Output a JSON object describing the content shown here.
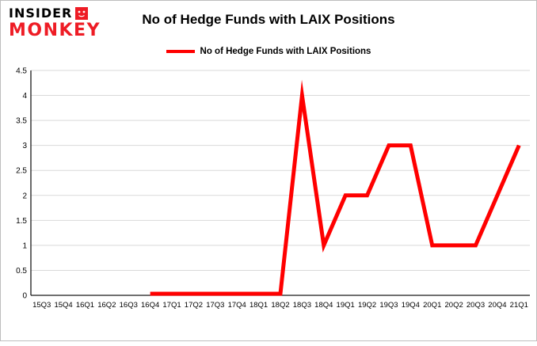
{
  "logo": {
    "line1": "INSIDER",
    "line2": "MONKEY",
    "red": "#ee1c25"
  },
  "header": {
    "title": "No of Hedge Funds with LAIX Positions"
  },
  "legend": {
    "label": "No of Hedge Funds with LAIX Positions",
    "color": "#ff0000"
  },
  "chart_data": {
    "type": "line",
    "title": "No of Hedge Funds with LAIX Positions",
    "categories": [
      "15Q3",
      "15Q4",
      "16Q1",
      "16Q2",
      "16Q3",
      "16Q4",
      "17Q1",
      "17Q2",
      "17Q3",
      "17Q4",
      "18Q1",
      "18Q2",
      "18Q3",
      "18Q4",
      "19Q1",
      "19Q2",
      "19Q3",
      "19Q4",
      "20Q1",
      "20Q2",
      "20Q3",
      "20Q4",
      "21Q1"
    ],
    "series": [
      {
        "name": "No of Hedge Funds with LAIX Positions",
        "color": "#ff0000",
        "values": [
          null,
          null,
          null,
          null,
          null,
          0,
          0,
          0,
          0,
          0,
          0,
          0,
          4,
          1,
          2,
          2,
          3,
          3,
          1,
          1,
          1,
          2,
          3
        ]
      }
    ],
    "xlabel": "",
    "ylabel": "",
    "ylim": [
      0,
      4.5
    ],
    "ytick_step": 0.5,
    "grid": true,
    "gridline_color": "#d9d9d9",
    "axis_color": "#1a1a1a",
    "legend_position": "top"
  }
}
